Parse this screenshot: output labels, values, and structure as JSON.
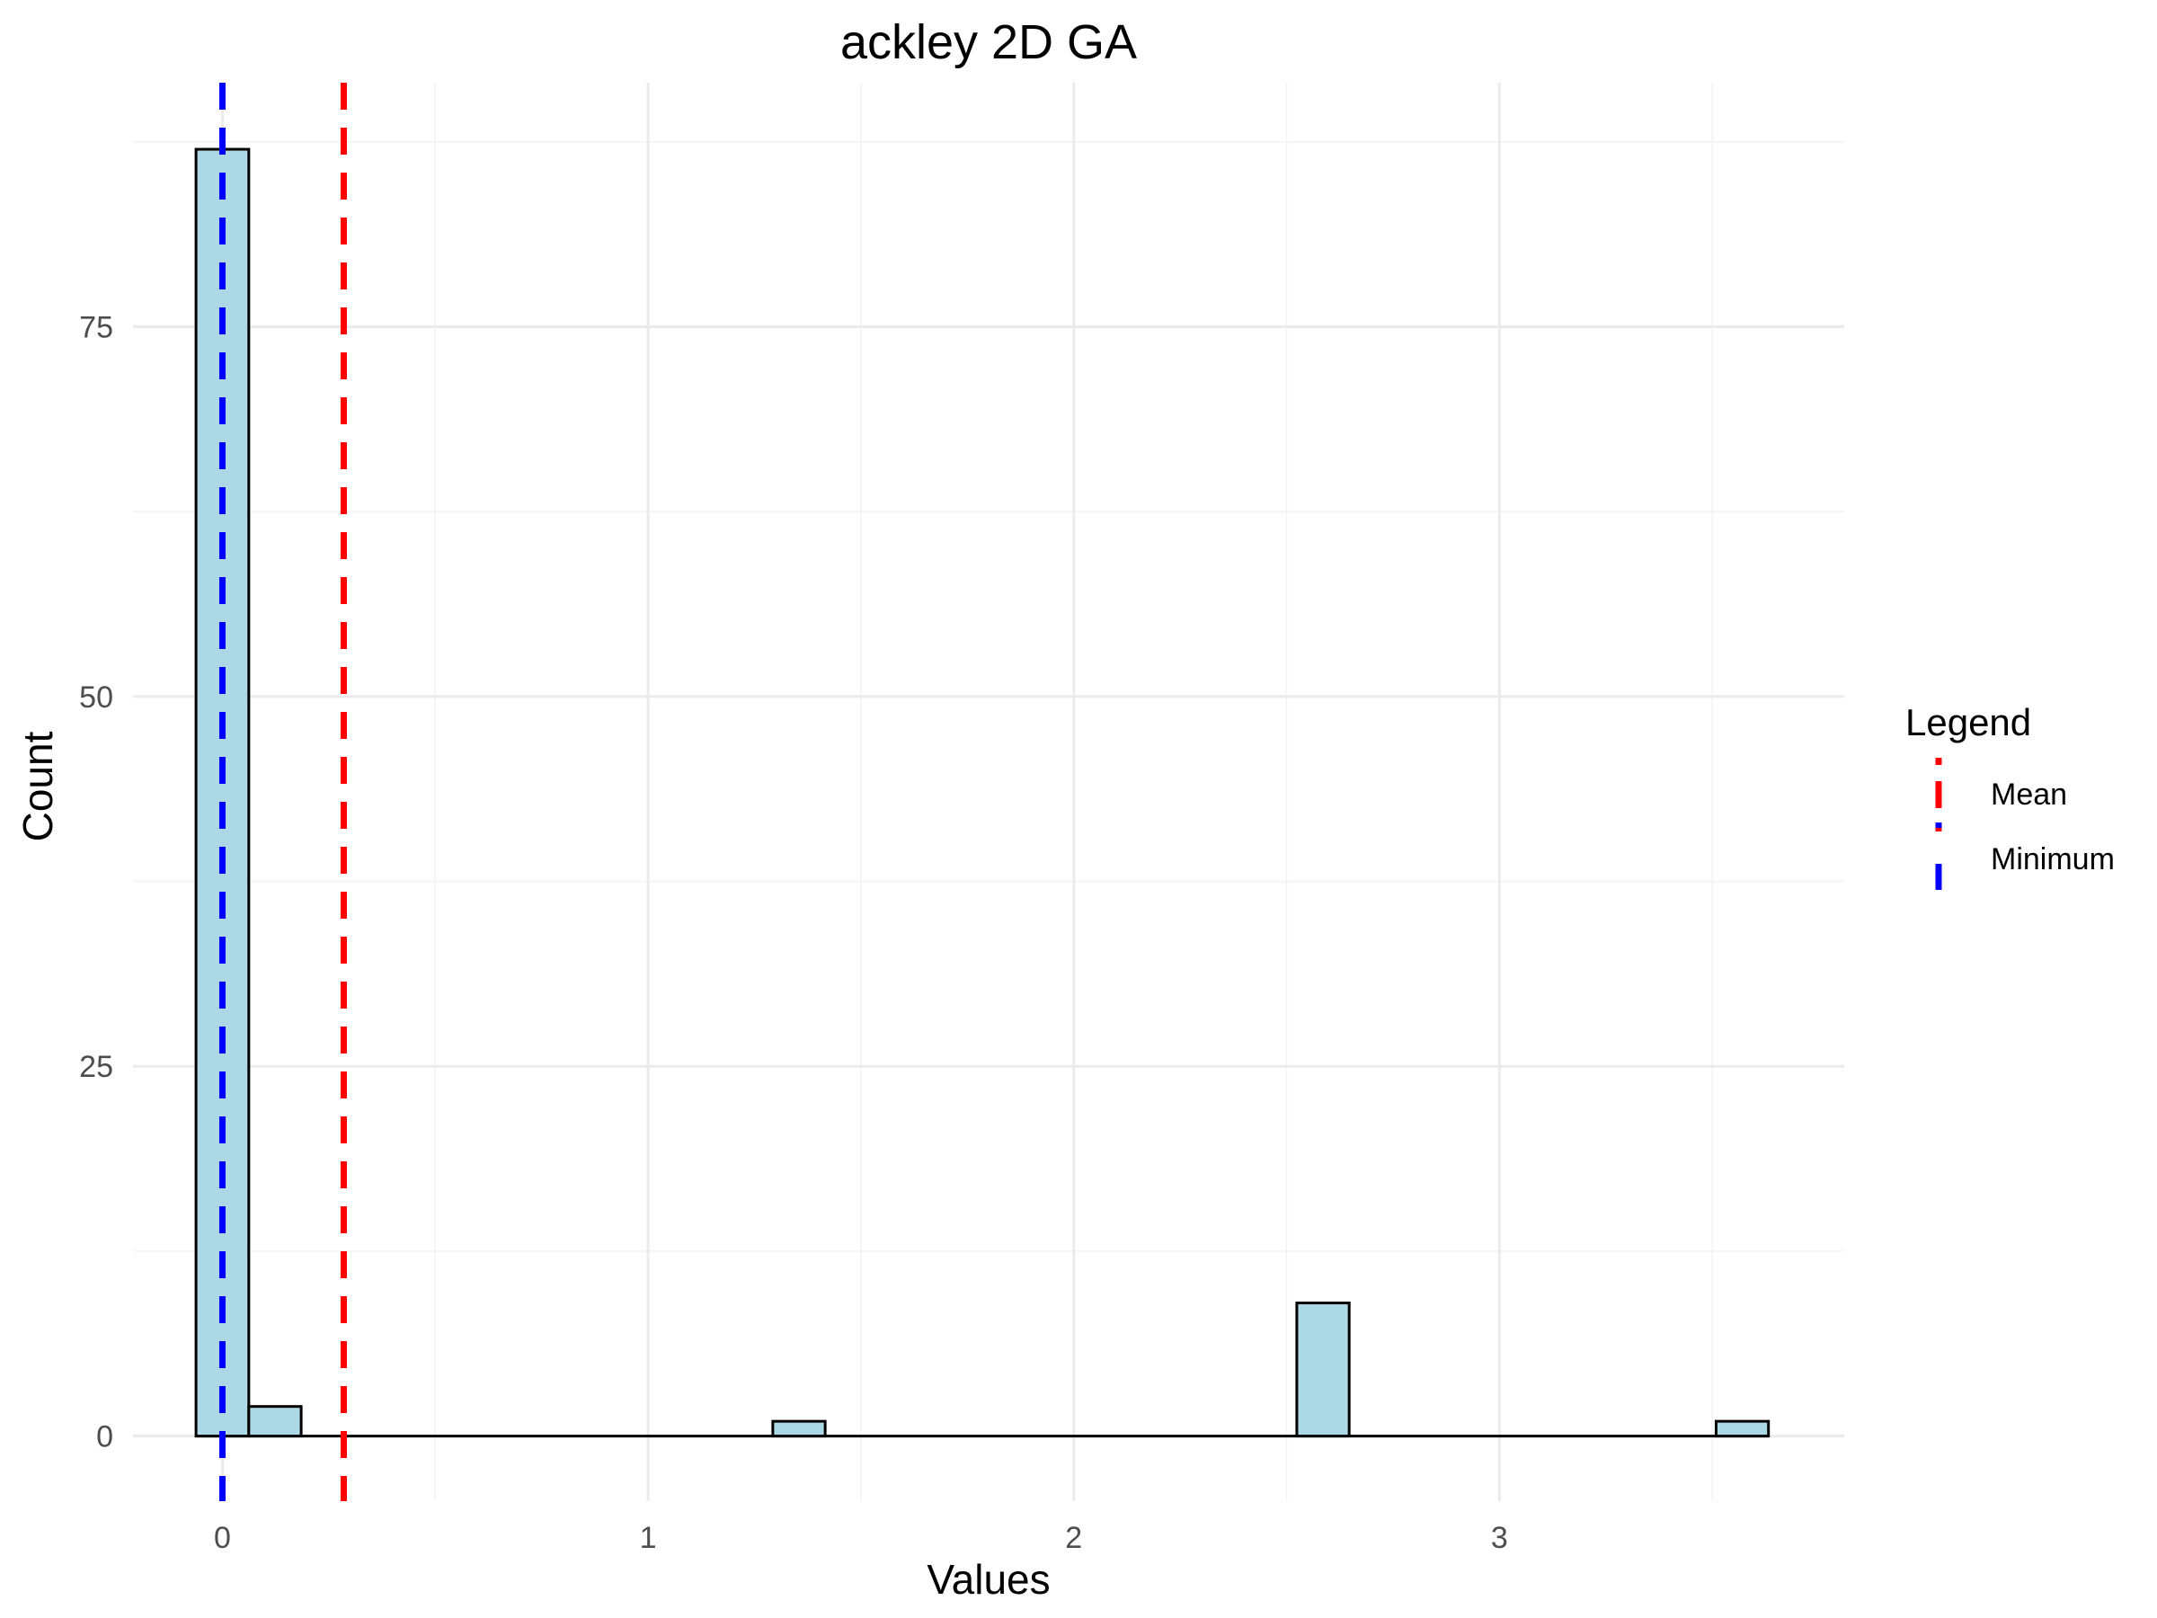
{
  "chart_data": {
    "type": "bar",
    "subtype": "histogram",
    "title": "ackley 2D GA",
    "xlabel": "Values",
    "ylabel": "Count",
    "xlim": [
      -0.21,
      3.81
    ],
    "ylim": [
      -4.4,
      91.5
    ],
    "x_ticks": [
      0,
      1,
      2,
      3
    ],
    "y_ticks": [
      0,
      25,
      50,
      75
    ],
    "grid": true,
    "bin_width": 0.123,
    "bars": [
      {
        "x_start": -0.062,
        "x_end": 0.062,
        "count": 87
      },
      {
        "x_start": 0.062,
        "x_end": 0.185,
        "count": 2
      },
      {
        "x_start": 1.293,
        "x_end": 1.416,
        "count": 1
      },
      {
        "x_start": 2.524,
        "x_end": 2.647,
        "count": 9
      },
      {
        "x_start": 3.509,
        "x_end": 3.632,
        "count": 1
      }
    ],
    "baseline": {
      "x_start": -0.062,
      "x_end": 3.632
    },
    "fill_color": "#add8e6",
    "outline_color": "#000000",
    "reference_lines": [
      {
        "name": "Mean",
        "x": 0.285,
        "color": "#ff0000",
        "style": "dashed"
      },
      {
        "name": "Minimum",
        "x": 0.0,
        "color": "#0000ff",
        "style": "dashed"
      }
    ],
    "legend": {
      "title": "Legend",
      "position": "right",
      "entries": [
        {
          "label": "Mean",
          "color": "#ff0000"
        },
        {
          "label": "Minimum",
          "color": "#0000ff"
        }
      ]
    }
  }
}
